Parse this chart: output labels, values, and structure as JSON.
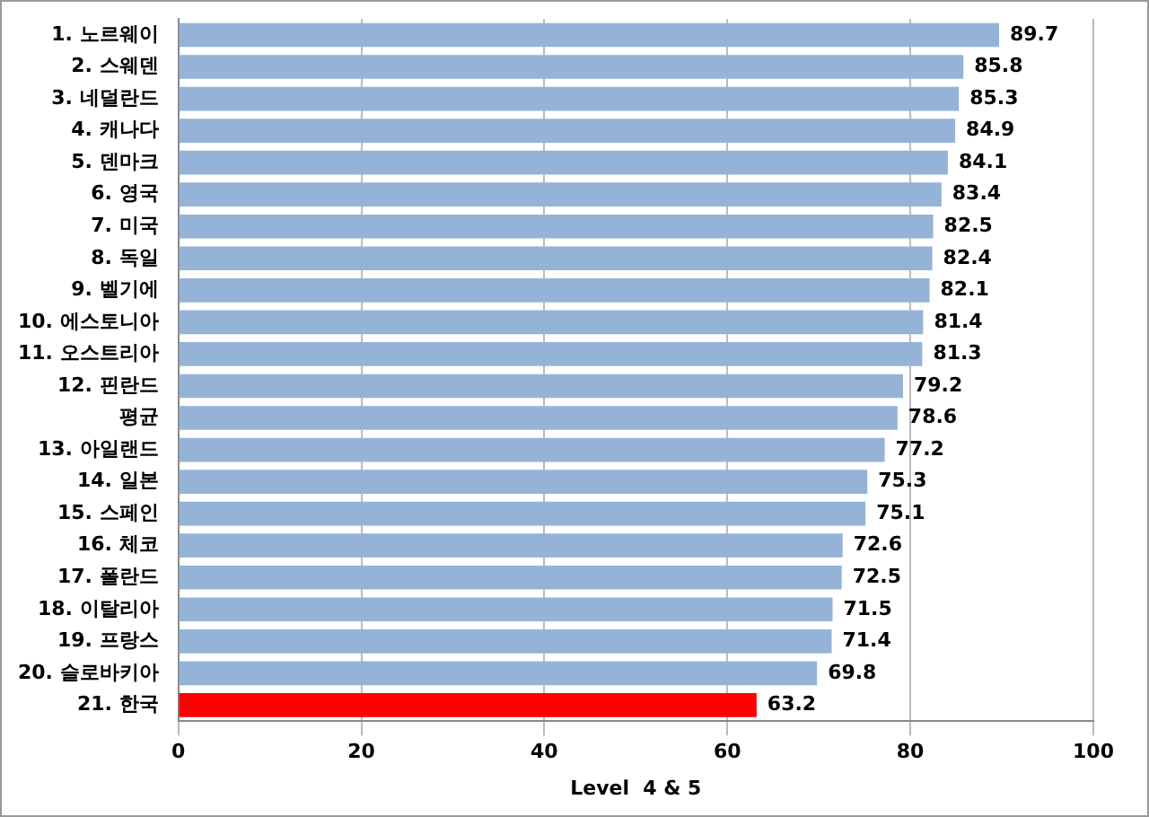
{
  "chart_data": {
    "type": "bar",
    "orientation": "horizontal",
    "xlabel": "Level  4 & 5",
    "categories": [
      "1. 노르웨이",
      "2. 스웨덴",
      "3. 네덜란드",
      "4. 캐나다",
      "5. 덴마크",
      "6. 영국",
      "7. 미국",
      "8. 독일",
      "9. 벨기에",
      "10. 에스토니아",
      "11. 오스트리아",
      "12. 핀란드",
      "평균",
      "13. 아일랜드",
      "14. 일본",
      "15. 스페인",
      "16. 체코",
      "17. 폴란드",
      "18. 이탈리아",
      "19. 프랑스",
      "20. 슬로바키아",
      "21. 한국"
    ],
    "values": [
      89.7,
      85.8,
      85.3,
      84.9,
      84.1,
      83.4,
      82.5,
      82.4,
      82.1,
      81.4,
      81.3,
      79.2,
      78.6,
      77.2,
      75.3,
      75.1,
      72.6,
      72.5,
      71.5,
      71.4,
      69.8,
      63.2
    ],
    "colors": [
      "#95b3d7",
      "#95b3d7",
      "#95b3d7",
      "#95b3d7",
      "#95b3d7",
      "#95b3d7",
      "#95b3d7",
      "#95b3d7",
      "#95b3d7",
      "#95b3d7",
      "#95b3d7",
      "#95b3d7",
      "#95b3d7",
      "#95b3d7",
      "#95b3d7",
      "#95b3d7",
      "#95b3d7",
      "#95b3d7",
      "#95b3d7",
      "#95b3d7",
      "#95b3d7",
      "#ff0000"
    ],
    "xlim": [
      0,
      100
    ],
    "xticks": [
      0,
      20,
      40,
      60,
      80,
      100
    ],
    "grid": "x",
    "data_labels": true,
    "legend": false
  }
}
